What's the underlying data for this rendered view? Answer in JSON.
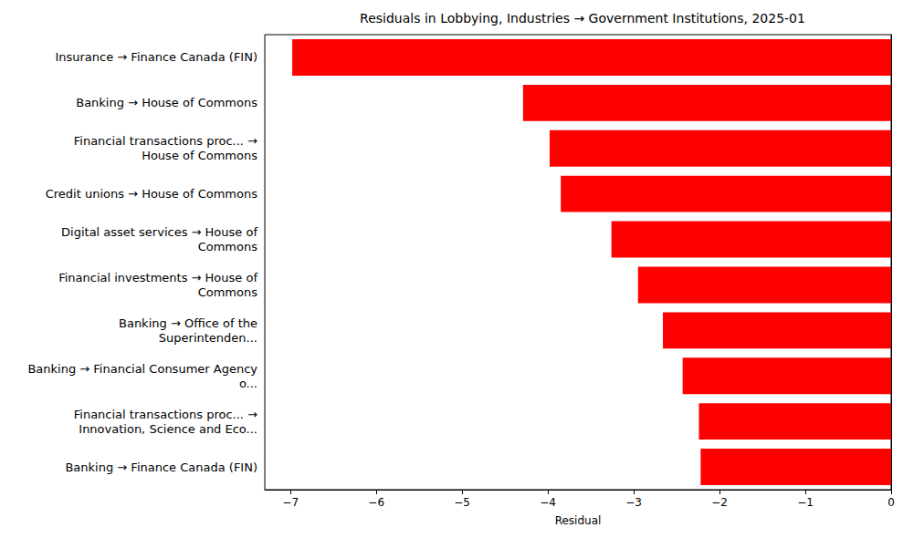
{
  "chart_data": {
    "type": "bar",
    "orientation": "horizontal",
    "title": "Residuals in Lobbying, Industries → Government Institutions, 2025-01",
    "x_label": "Residual",
    "categories": [
      "Insurance → Finance Canada (FIN)",
      "Banking → House of Commons",
      "Financial transactions proc... →\nHouse of Commons",
      "Credit unions → House of Commons",
      "Digital asset services → House of\nCommons",
      "Financial investments → House of\nCommons",
      "Banking → Office of the\nSuperintenden...",
      "Banking → Financial Consumer Agency\no...",
      "Financial transactions proc... →\nInnovation, Science and Eco...",
      "Banking → Finance Canada (FIN)"
    ],
    "values": [
      -6.98,
      -4.29,
      -3.98,
      -3.85,
      -3.26,
      -2.95,
      -2.66,
      -2.43,
      -2.24,
      -2.22
    ],
    "color": "#ff0000",
    "xlim": [
      -7.3,
      0
    ],
    "xticks": [
      {
        "value": -7,
        "label": "−7"
      },
      {
        "value": -6,
        "label": "−6"
      },
      {
        "value": -5,
        "label": "−5"
      },
      {
        "value": -4,
        "label": "−4"
      },
      {
        "value": -3,
        "label": "−3"
      },
      {
        "value": -2,
        "label": "−2"
      },
      {
        "value": -1,
        "label": "−1"
      },
      0
    ],
    "grid": false
  }
}
